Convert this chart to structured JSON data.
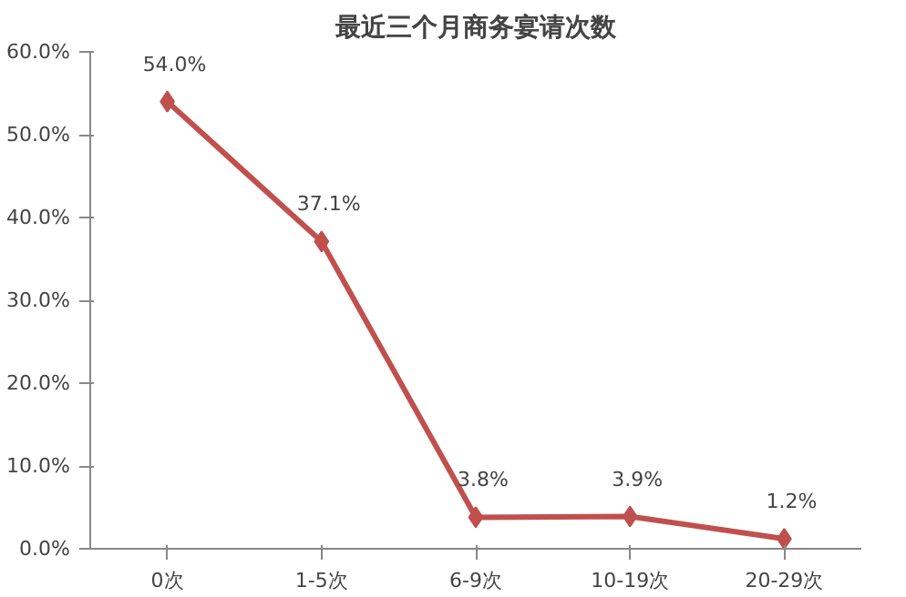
{
  "chart_data": {
    "type": "line",
    "title": "最近三个月商务宴请次数",
    "categories": [
      "0次",
      "1-5次",
      "6-9次",
      "10-19次",
      "20-29次"
    ],
    "series": [
      {
        "color": "#c0504d",
        "values": [
          54.0,
          37.1,
          3.8,
          3.9,
          1.2
        ],
        "value_labels": [
          "54.0%",
          "37.1%",
          "3.8%",
          "3.9%",
          "1.2%"
        ]
      }
    ],
    "ylim": [
      0,
      60
    ],
    "yticks": [
      {
        "value": 0,
        "label": "0.0%"
      },
      {
        "value": 10,
        "label": "10.0%"
      },
      {
        "value": 20,
        "label": "20.0%"
      },
      {
        "value": 30,
        "label": "30.0%"
      },
      {
        "value": 40,
        "label": "40.0%"
      },
      {
        "value": 50,
        "label": "50.0%"
      },
      {
        "value": 60,
        "label": "60.0%"
      }
    ],
    "marker": "diamond",
    "line_style": "solid"
  }
}
